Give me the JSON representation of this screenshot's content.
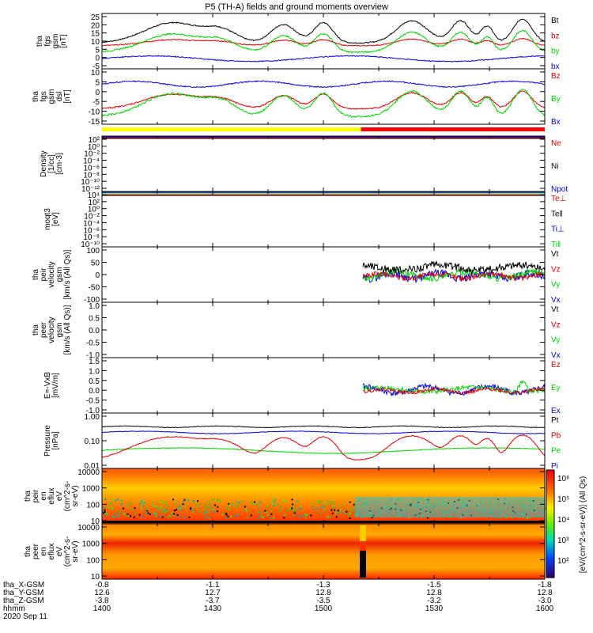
{
  "title": "P5 (TH-A) fields and ground moments overview",
  "colors": {
    "black": "#000000",
    "red": "#e00000",
    "green": "#00d000",
    "blue": "#0000e0",
    "yellow": "#ffff00",
    "barred": "#ff0000"
  },
  "time_ticks": [
    "1400",
    "1430",
    "1500",
    "1530",
    "1600"
  ],
  "ephemeris": {
    "labels": [
      "tha_X-GSM",
      "tha_Y-GSM",
      "tha_Z-GSM",
      "hhmm",
      "2020 Sep 11"
    ],
    "x": [
      "-0.8",
      "-1.1",
      "-1.3",
      "-1.5",
      "-1.8"
    ],
    "y": [
      "12.6",
      "12.7",
      "12.8",
      "12.8",
      "12.8"
    ],
    "z": [
      "-3.8",
      "-3.7",
      "-3.5",
      "-3.2",
      "-3.0"
    ]
  },
  "colorbar": {
    "ticks": [
      "10⁶",
      "10⁵",
      "10⁴",
      "10³",
      "10²"
    ],
    "label": "[eV/(cm^2-s-sr-eV)] (All Qs)"
  },
  "chart_data": [
    {
      "id": "fgs_btot",
      "type": "line",
      "ylabel": [
        "tha",
        "fgs",
        "gsm",
        "[nT]"
      ],
      "ylim": [
        -5,
        25
      ],
      "yticks": [
        "25",
        "20",
        "15",
        "10",
        "5",
        "0",
        "-5"
      ],
      "series": [
        {
          "name": "Bt",
          "color": "black"
        },
        {
          "name": "bz",
          "color": "red"
        },
        {
          "name": "by",
          "color": "green"
        },
        {
          "name": "bx",
          "color": "blue"
        }
      ]
    },
    {
      "id": "fgs_dsl",
      "type": "line",
      "ylabel": [
        "tha",
        "fgs",
        "gsm",
        "dsl",
        "[nT]"
      ],
      "ylim": [
        -17,
        12
      ],
      "yticks": [
        "10",
        "5",
        "0",
        "-5",
        "-10",
        "-15"
      ],
      "series": [
        {
          "name": "Bz",
          "color": "red"
        },
        {
          "name": "By",
          "color": "green"
        },
        {
          "name": "Bx",
          "color": "blue"
        }
      ]
    },
    {
      "id": "density",
      "type": "line",
      "ylabel": [
        "Density",
        "[1/cc]",
        "[cm-3]"
      ],
      "yticks": [
        "10²",
        "10⁰",
        "10⁻²",
        "10⁻⁴",
        "10⁻⁶",
        "10⁻⁸",
        "10⁻¹⁰",
        "10⁻¹²"
      ],
      "series": [
        {
          "name": "Ne",
          "color": "red"
        },
        {
          "name": "Ni",
          "color": "black"
        },
        {
          "name": "Npot",
          "color": "blue"
        }
      ]
    },
    {
      "id": "temperature",
      "type": "line",
      "ylabel": [
        "moqt3",
        "[eV]"
      ],
      "yticks": [
        "10⁴",
        "10²",
        "10⁰",
        "10⁻²",
        "10⁻⁴",
        "10⁻⁶",
        "10⁻⁸",
        "10⁻¹⁰"
      ],
      "series": [
        {
          "name": "Te⊥",
          "color": "red"
        },
        {
          "name": "Te‖",
          "color": "black"
        },
        {
          "name": "Ti⊥",
          "color": "blue"
        },
        {
          "name": "Ti‖",
          "color": "green"
        }
      ]
    },
    {
      "id": "peir_velocity",
      "type": "line",
      "ylabel": [
        "tha",
        "peir",
        "velocity",
        "gsm",
        "[km/s (All Qs)]"
      ],
      "ylim": [
        -100,
        100
      ],
      "yticks": [
        "100",
        "50",
        "0",
        "-50",
        "-100"
      ],
      "series": [
        {
          "name": "Vt",
          "color": "black"
        },
        {
          "name": "Vz",
          "color": "red"
        },
        {
          "name": "Vy",
          "color": "green"
        },
        {
          "name": "Vx",
          "color": "blue"
        }
      ]
    },
    {
      "id": "peer_velocity",
      "type": "line",
      "ylabel": [
        "tha",
        "peer",
        "velocity",
        "gsm",
        "[km/s (All Qs)]"
      ],
      "ylim": [
        -1,
        1
      ],
      "yticks": [
        "1.0",
        "0.5",
        "0.0",
        "-0.5",
        "-1.0"
      ],
      "series": [
        {
          "name": "Vt",
          "color": "black"
        },
        {
          "name": "Vz",
          "color": "red"
        },
        {
          "name": "Vy",
          "color": "green"
        },
        {
          "name": "Vx",
          "color": "blue"
        }
      ]
    },
    {
      "id": "efield",
      "type": "line",
      "ylabel": [
        "E=-VxB",
        "[mV/m]"
      ],
      "ylim": [
        -1,
        1.5
      ],
      "yticks": [
        "1.5",
        "1.0",
        "0.5",
        "0.0",
        "-0.5",
        "-1.0"
      ],
      "series": [
        {
          "name": "Ez",
          "color": "red"
        },
        {
          "name": "Ey",
          "color": "green"
        },
        {
          "name": "Ex",
          "color": "blue"
        }
      ]
    },
    {
      "id": "pressure",
      "type": "line",
      "ylabel": [
        "Pressure",
        "[nPa]"
      ],
      "ylim": [
        0.01,
        1
      ],
      "yticks": [
        "1.00",
        "0.10",
        "0.01"
      ],
      "series": [
        {
          "name": "Pt",
          "color": "black"
        },
        {
          "name": "Pb",
          "color": "red"
        },
        {
          "name": "Pe",
          "color": "green"
        },
        {
          "name": "Pi",
          "color": "blue"
        }
      ]
    },
    {
      "id": "peir_spectrogram",
      "type": "heatmap",
      "ylabel": [
        "tha",
        "peir",
        "en",
        "eflux",
        "eV",
        "(cm^2-s-",
        "sr-eV)"
      ],
      "yticks": [
        "10000",
        "1000",
        "100",
        "10"
      ]
    },
    {
      "id": "peer_spectrogram",
      "type": "heatmap",
      "ylabel": [
        "tha",
        "peer",
        "en",
        "eflux",
        "eV",
        "(cm^2-s-",
        "sr-eV)"
      ],
      "yticks": [
        "10000",
        "1000",
        "100",
        "10"
      ]
    }
  ]
}
